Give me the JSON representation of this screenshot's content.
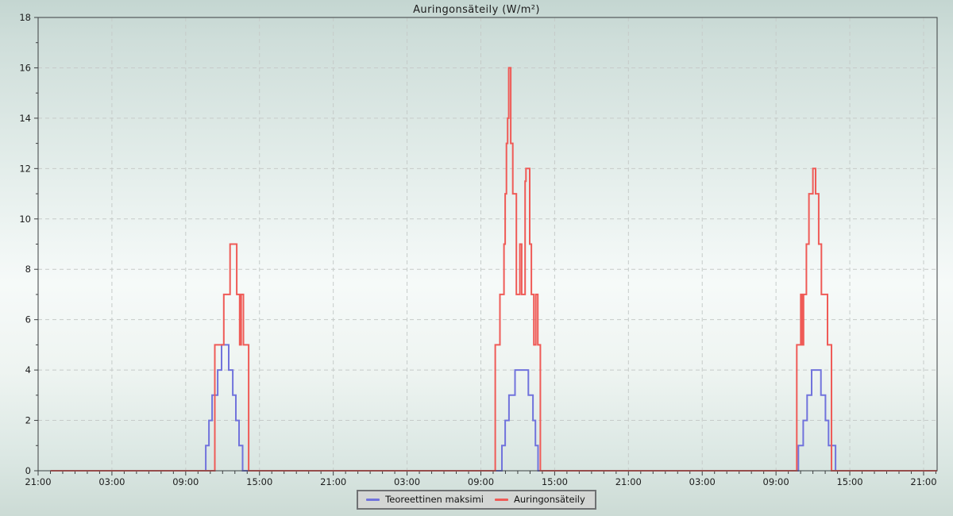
{
  "title": "Auringonsäteily (W/m²)",
  "legend": {
    "items": [
      {
        "label": "Teoreettinen maksimi",
        "color": "#7173dc"
      },
      {
        "label": "Auringonsäteily",
        "color": "#ef5b57"
      }
    ]
  },
  "axes": {
    "x_unit": "hours from first 21:00",
    "x_max": 73.1,
    "y_min": 0,
    "y_max": 18,
    "y_tick_step": 2,
    "y_minor_step": 1,
    "x_minor_step_hours": 1,
    "grid_dashed": true,
    "grid_color": "#c6cbc9",
    "frame_color": "#3c3f41",
    "tick_label_color": "#1c1c1c",
    "x_tick_labels": [
      {
        "t": 0,
        "label": "21:00"
      },
      {
        "t": 6,
        "label": "03:00"
      },
      {
        "t": 12,
        "label": "09:00"
      },
      {
        "t": 18,
        "label": "15:00"
      },
      {
        "t": 24,
        "label": "21:00"
      },
      {
        "t": 30,
        "label": "03:00"
      },
      {
        "t": 36,
        "label": "09:00"
      },
      {
        "t": 42,
        "label": "15:00"
      },
      {
        "t": 48,
        "label": "21:00"
      },
      {
        "t": 54,
        "label": "03:00"
      },
      {
        "t": 60,
        "label": "09:00"
      },
      {
        "t": 66,
        "label": "15:00"
      },
      {
        "t": 72,
        "label": "21:00"
      }
    ],
    "y_tick_labels": [
      "0",
      "2",
      "4",
      "6",
      "8",
      "10",
      "12",
      "14",
      "16",
      "18"
    ]
  },
  "chart_data": {
    "type": "line",
    "interpolation": "step-after",
    "title": "Auringonsäteily (W/m²)",
    "ylabel": "W/m²",
    "xlabel": "",
    "ylim": [
      0,
      18
    ],
    "xlim_hours": [
      0,
      73.1
    ],
    "legend_position": "bottom-center",
    "series": [
      {
        "name": "Teoreettinen maksimi",
        "color": "#7173dc",
        "width": 2,
        "points": [
          [
            1.0,
            0
          ],
          [
            13.63,
            1
          ],
          [
            13.89,
            2
          ],
          [
            14.15,
            3
          ],
          [
            14.6,
            4
          ],
          [
            14.92,
            5
          ],
          [
            15.5,
            4
          ],
          [
            15.83,
            3
          ],
          [
            16.08,
            2
          ],
          [
            16.34,
            1
          ],
          [
            16.63,
            0
          ],
          [
            37.71,
            1
          ],
          [
            37.98,
            2
          ],
          [
            38.29,
            3
          ],
          [
            38.78,
            4
          ],
          [
            39.86,
            3
          ],
          [
            40.24,
            2
          ],
          [
            40.44,
            1
          ],
          [
            40.65,
            0
          ],
          [
            61.82,
            1
          ],
          [
            62.21,
            2
          ],
          [
            62.53,
            3
          ],
          [
            62.9,
            4
          ],
          [
            63.65,
            3
          ],
          [
            64.02,
            2
          ],
          [
            64.27,
            1
          ],
          [
            64.84,
            0
          ],
          [
            73.1,
            0
          ]
        ]
      },
      {
        "name": "Auringonsäteily",
        "color": "#ef5b57",
        "width": 2,
        "points": [
          [
            1.0,
            0
          ],
          [
            14.37,
            5
          ],
          [
            15.1,
            7
          ],
          [
            15.61,
            9
          ],
          [
            16.15,
            7
          ],
          [
            16.39,
            5
          ],
          [
            16.51,
            7
          ],
          [
            16.69,
            5
          ],
          [
            17.12,
            0
          ],
          [
            37.17,
            5
          ],
          [
            37.55,
            7
          ],
          [
            37.88,
            9
          ],
          [
            37.98,
            11
          ],
          [
            38.08,
            13
          ],
          [
            38.18,
            14
          ],
          [
            38.27,
            16
          ],
          [
            38.43,
            13
          ],
          [
            38.6,
            11
          ],
          [
            38.89,
            7
          ],
          [
            39.17,
            9
          ],
          [
            39.32,
            7
          ],
          [
            39.6,
            11.5
          ],
          [
            39.67,
            12
          ],
          [
            39.97,
            9
          ],
          [
            40.11,
            7
          ],
          [
            40.31,
            5
          ],
          [
            40.47,
            7
          ],
          [
            40.63,
            5
          ],
          [
            40.84,
            0
          ],
          [
            61.69,
            5
          ],
          [
            62.01,
            7
          ],
          [
            62.14,
            5
          ],
          [
            62.24,
            7
          ],
          [
            62.47,
            9
          ],
          [
            62.68,
            11
          ],
          [
            63.0,
            12
          ],
          [
            63.22,
            11
          ],
          [
            63.47,
            9
          ],
          [
            63.69,
            7
          ],
          [
            64.19,
            5
          ],
          [
            64.51,
            0
          ],
          [
            73.1,
            0
          ]
        ]
      }
    ]
  }
}
